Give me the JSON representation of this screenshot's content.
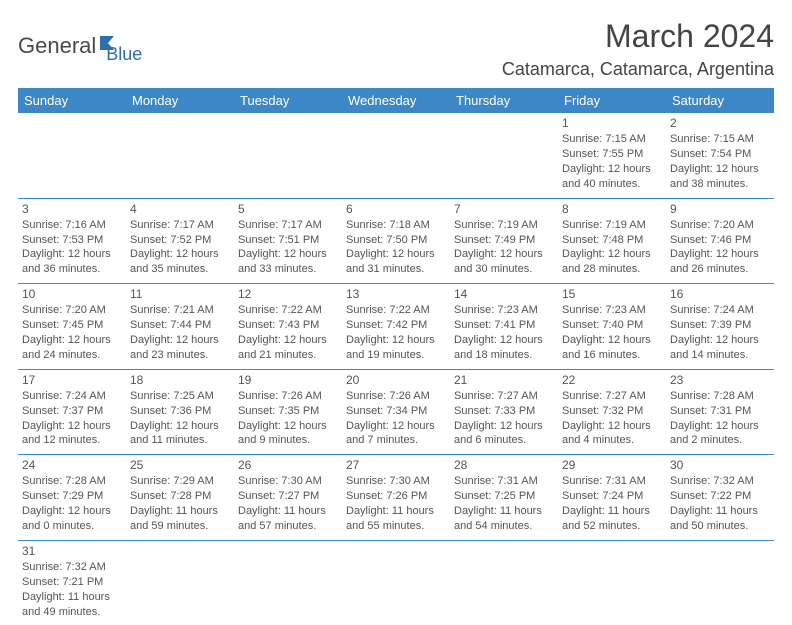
{
  "logo": {
    "part1": "General",
    "part2": "Blue"
  },
  "title": "March 2024",
  "location": "Catamarca, Catamarca, Argentina",
  "colors": {
    "header_bg": "#3d87c7",
    "header_text": "#ffffff",
    "border": "#3d87c7",
    "body_text": "#555555",
    "title_text": "#444444",
    "logo_blue": "#2f6fa8",
    "logo_gray": "#4a4a4a",
    "page_bg": "#ffffff"
  },
  "day_headers": [
    "Sunday",
    "Monday",
    "Tuesday",
    "Wednesday",
    "Thursday",
    "Friday",
    "Saturday"
  ],
  "weeks": [
    [
      null,
      null,
      null,
      null,
      null,
      {
        "day": "1",
        "sunrise": "Sunrise: 7:15 AM",
        "sunset": "Sunset: 7:55 PM",
        "dl1": "Daylight: 12 hours",
        "dl2": "and 40 minutes."
      },
      {
        "day": "2",
        "sunrise": "Sunrise: 7:15 AM",
        "sunset": "Sunset: 7:54 PM",
        "dl1": "Daylight: 12 hours",
        "dl2": "and 38 minutes."
      }
    ],
    [
      {
        "day": "3",
        "sunrise": "Sunrise: 7:16 AM",
        "sunset": "Sunset: 7:53 PM",
        "dl1": "Daylight: 12 hours",
        "dl2": "and 36 minutes."
      },
      {
        "day": "4",
        "sunrise": "Sunrise: 7:17 AM",
        "sunset": "Sunset: 7:52 PM",
        "dl1": "Daylight: 12 hours",
        "dl2": "and 35 minutes."
      },
      {
        "day": "5",
        "sunrise": "Sunrise: 7:17 AM",
        "sunset": "Sunset: 7:51 PM",
        "dl1": "Daylight: 12 hours",
        "dl2": "and 33 minutes."
      },
      {
        "day": "6",
        "sunrise": "Sunrise: 7:18 AM",
        "sunset": "Sunset: 7:50 PM",
        "dl1": "Daylight: 12 hours",
        "dl2": "and 31 minutes."
      },
      {
        "day": "7",
        "sunrise": "Sunrise: 7:19 AM",
        "sunset": "Sunset: 7:49 PM",
        "dl1": "Daylight: 12 hours",
        "dl2": "and 30 minutes."
      },
      {
        "day": "8",
        "sunrise": "Sunrise: 7:19 AM",
        "sunset": "Sunset: 7:48 PM",
        "dl1": "Daylight: 12 hours",
        "dl2": "and 28 minutes."
      },
      {
        "day": "9",
        "sunrise": "Sunrise: 7:20 AM",
        "sunset": "Sunset: 7:46 PM",
        "dl1": "Daylight: 12 hours",
        "dl2": "and 26 minutes."
      }
    ],
    [
      {
        "day": "10",
        "sunrise": "Sunrise: 7:20 AM",
        "sunset": "Sunset: 7:45 PM",
        "dl1": "Daylight: 12 hours",
        "dl2": "and 24 minutes."
      },
      {
        "day": "11",
        "sunrise": "Sunrise: 7:21 AM",
        "sunset": "Sunset: 7:44 PM",
        "dl1": "Daylight: 12 hours",
        "dl2": "and 23 minutes."
      },
      {
        "day": "12",
        "sunrise": "Sunrise: 7:22 AM",
        "sunset": "Sunset: 7:43 PM",
        "dl1": "Daylight: 12 hours",
        "dl2": "and 21 minutes."
      },
      {
        "day": "13",
        "sunrise": "Sunrise: 7:22 AM",
        "sunset": "Sunset: 7:42 PM",
        "dl1": "Daylight: 12 hours",
        "dl2": "and 19 minutes."
      },
      {
        "day": "14",
        "sunrise": "Sunrise: 7:23 AM",
        "sunset": "Sunset: 7:41 PM",
        "dl1": "Daylight: 12 hours",
        "dl2": "and 18 minutes."
      },
      {
        "day": "15",
        "sunrise": "Sunrise: 7:23 AM",
        "sunset": "Sunset: 7:40 PM",
        "dl1": "Daylight: 12 hours",
        "dl2": "and 16 minutes."
      },
      {
        "day": "16",
        "sunrise": "Sunrise: 7:24 AM",
        "sunset": "Sunset: 7:39 PM",
        "dl1": "Daylight: 12 hours",
        "dl2": "and 14 minutes."
      }
    ],
    [
      {
        "day": "17",
        "sunrise": "Sunrise: 7:24 AM",
        "sunset": "Sunset: 7:37 PM",
        "dl1": "Daylight: 12 hours",
        "dl2": "and 12 minutes."
      },
      {
        "day": "18",
        "sunrise": "Sunrise: 7:25 AM",
        "sunset": "Sunset: 7:36 PM",
        "dl1": "Daylight: 12 hours",
        "dl2": "and 11 minutes."
      },
      {
        "day": "19",
        "sunrise": "Sunrise: 7:26 AM",
        "sunset": "Sunset: 7:35 PM",
        "dl1": "Daylight: 12 hours",
        "dl2": "and 9 minutes."
      },
      {
        "day": "20",
        "sunrise": "Sunrise: 7:26 AM",
        "sunset": "Sunset: 7:34 PM",
        "dl1": "Daylight: 12 hours",
        "dl2": "and 7 minutes."
      },
      {
        "day": "21",
        "sunrise": "Sunrise: 7:27 AM",
        "sunset": "Sunset: 7:33 PM",
        "dl1": "Daylight: 12 hours",
        "dl2": "and 6 minutes."
      },
      {
        "day": "22",
        "sunrise": "Sunrise: 7:27 AM",
        "sunset": "Sunset: 7:32 PM",
        "dl1": "Daylight: 12 hours",
        "dl2": "and 4 minutes."
      },
      {
        "day": "23",
        "sunrise": "Sunrise: 7:28 AM",
        "sunset": "Sunset: 7:31 PM",
        "dl1": "Daylight: 12 hours",
        "dl2": "and 2 minutes."
      }
    ],
    [
      {
        "day": "24",
        "sunrise": "Sunrise: 7:28 AM",
        "sunset": "Sunset: 7:29 PM",
        "dl1": "Daylight: 12 hours",
        "dl2": "and 0 minutes."
      },
      {
        "day": "25",
        "sunrise": "Sunrise: 7:29 AM",
        "sunset": "Sunset: 7:28 PM",
        "dl1": "Daylight: 11 hours",
        "dl2": "and 59 minutes."
      },
      {
        "day": "26",
        "sunrise": "Sunrise: 7:30 AM",
        "sunset": "Sunset: 7:27 PM",
        "dl1": "Daylight: 11 hours",
        "dl2": "and 57 minutes."
      },
      {
        "day": "27",
        "sunrise": "Sunrise: 7:30 AM",
        "sunset": "Sunset: 7:26 PM",
        "dl1": "Daylight: 11 hours",
        "dl2": "and 55 minutes."
      },
      {
        "day": "28",
        "sunrise": "Sunrise: 7:31 AM",
        "sunset": "Sunset: 7:25 PM",
        "dl1": "Daylight: 11 hours",
        "dl2": "and 54 minutes."
      },
      {
        "day": "29",
        "sunrise": "Sunrise: 7:31 AM",
        "sunset": "Sunset: 7:24 PM",
        "dl1": "Daylight: 11 hours",
        "dl2": "and 52 minutes."
      },
      {
        "day": "30",
        "sunrise": "Sunrise: 7:32 AM",
        "sunset": "Sunset: 7:22 PM",
        "dl1": "Daylight: 11 hours",
        "dl2": "and 50 minutes."
      }
    ],
    [
      {
        "day": "31",
        "sunrise": "Sunrise: 7:32 AM",
        "sunset": "Sunset: 7:21 PM",
        "dl1": "Daylight: 11 hours",
        "dl2": "and 49 minutes."
      },
      null,
      null,
      null,
      null,
      null,
      null
    ]
  ]
}
